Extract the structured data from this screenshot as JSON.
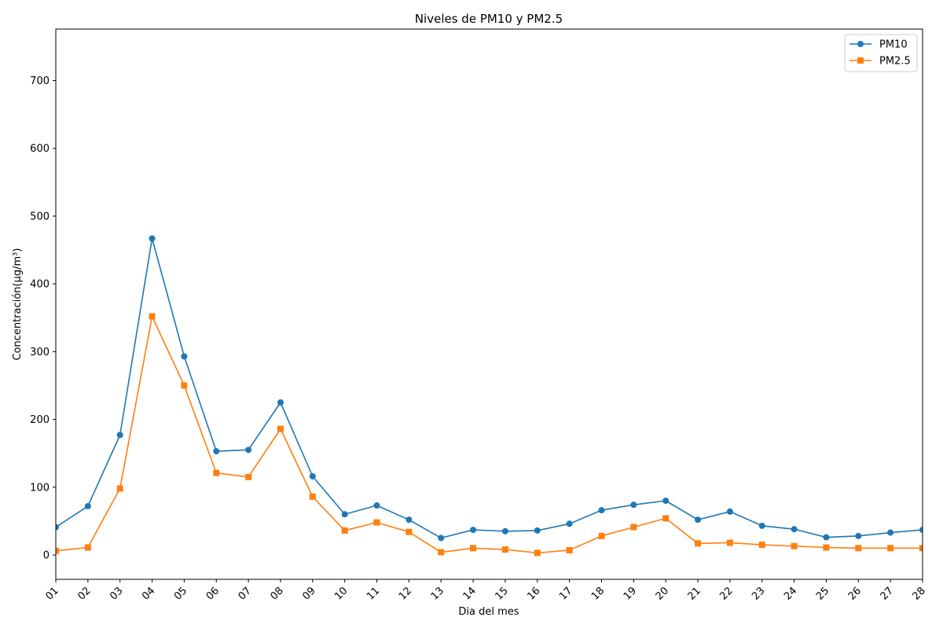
{
  "chart_data": {
    "type": "line",
    "title": "Niveles de PM10 y PM2.5",
    "xlabel": "Dia del mes",
    "ylabel": "Concentración(µg/m³)",
    "categories": [
      "01",
      "02",
      "03",
      "04",
      "05",
      "06",
      "07",
      "08",
      "09",
      "10",
      "11",
      "12",
      "13",
      "14",
      "15",
      "16",
      "17",
      "18",
      "19",
      "20",
      "21",
      "22",
      "23",
      "24",
      "25",
      "26",
      "27",
      "28"
    ],
    "ylim": [
      -36,
      776
    ],
    "yticks": [
      0,
      100,
      200,
      300,
      400,
      500,
      600,
      700
    ],
    "grid": false,
    "legend_position": "top-right",
    "series": [
      {
        "name": "PM10",
        "color": "#1f77b4",
        "marker": "circle",
        "values": [
          41,
          72,
          177,
          467,
          293,
          153,
          155,
          225,
          116,
          60,
          73,
          52,
          25,
          37,
          35,
          36,
          46,
          66,
          74,
          80,
          52,
          64,
          43,
          38,
          26,
          28,
          33,
          37
        ]
      },
      {
        "name": "PM2.5",
        "color": "#ff7f0e",
        "marker": "square",
        "values": [
          6,
          11,
          98,
          352,
          250,
          121,
          115,
          186,
          86,
          36,
          48,
          34,
          4,
          10,
          8,
          3,
          7,
          28,
          41,
          54,
          17,
          18,
          15,
          13,
          11,
          10,
          10,
          10
        ]
      }
    ]
  }
}
